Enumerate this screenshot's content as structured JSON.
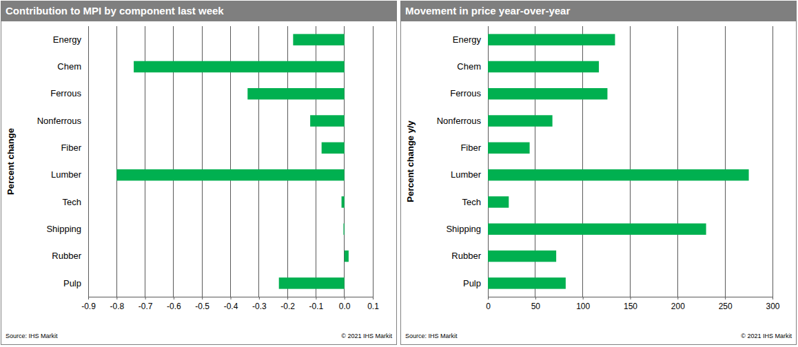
{
  "chart_data": [
    {
      "type": "bar",
      "orientation": "horizontal",
      "grid": true,
      "color": "#00b050",
      "title": "Contribution to MPI by component last week",
      "ylabel": "Percent change",
      "source": "Source: IHS Markit",
      "credit": "© 2021 IHS Markit",
      "categories": [
        "Energy",
        "Chem",
        "Ferrous",
        "Nonferrous",
        "Fiber",
        "Lumber",
        "Tech",
        "Shipping",
        "Rubber",
        "Pulp"
      ],
      "values": [
        -0.18,
        -0.74,
        -0.34,
        -0.12,
        -0.08,
        -0.8,
        -0.01,
        -0.003,
        0.015,
        -0.23
      ],
      "xlim": [
        -0.9,
        0.1
      ],
      "xticks": [
        -0.9,
        -0.8,
        -0.7,
        -0.6,
        -0.5,
        -0.4,
        -0.3,
        -0.2,
        -0.1,
        {
          "value": 0,
          "label": "0.0"
        },
        0.1
      ]
    },
    {
      "type": "bar",
      "orientation": "horizontal",
      "grid": true,
      "color": "#00b050",
      "title": "Movement in price year-over-year",
      "ylabel": "Percent change y/y",
      "source": "Source: IHS Markit",
      "credit": "© 2021 IHS Markit",
      "categories": [
        "Energy",
        "Chem",
        "Ferrous",
        "Nonferrous",
        "Fiber",
        "Lumber",
        "Tech",
        "Shipping",
        "Rubber",
        "Pulp"
      ],
      "values": [
        134,
        117,
        126,
        68,
        44,
        275,
        22,
        230,
        72,
        82
      ],
      "xlim": [
        0,
        300
      ],
      "xticks": [
        0,
        50,
        100,
        150,
        200,
        250,
        300
      ]
    }
  ]
}
